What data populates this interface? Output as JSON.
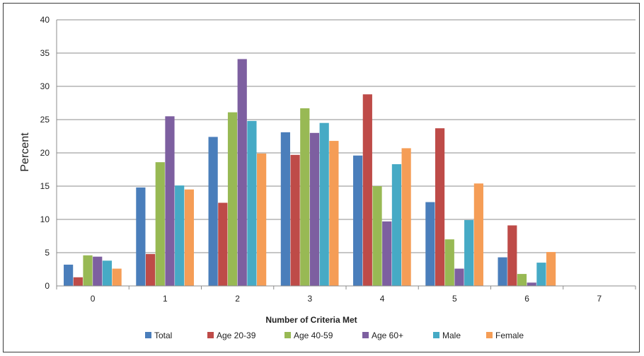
{
  "chart_data": {
    "type": "bar",
    "title": "",
    "xlabel": "Number of Criteria Met",
    "ylabel": "Percent",
    "ylim": [
      0,
      40
    ],
    "yticks": [
      "0",
      "5",
      "10",
      "15",
      "20",
      "25",
      "30",
      "35",
      "40"
    ],
    "grid": true,
    "legend_position": "bottom",
    "categories": [
      "0",
      "1",
      "2",
      "3",
      "4",
      "5",
      "6",
      "7"
    ],
    "series": [
      {
        "name": "Total",
        "color": "#4a7ebb",
        "values": [
          3.2,
          14.8,
          22.4,
          23.1,
          19.6,
          12.6,
          4.3,
          0.05
        ]
      },
      {
        "name": "Age 20-39",
        "color": "#be4b48",
        "values": [
          1.3,
          4.8,
          12.5,
          19.7,
          28.8,
          23.7,
          9.1,
          0.05
        ]
      },
      {
        "name": "Age 40-59",
        "color": "#98b954",
        "values": [
          4.6,
          18.6,
          26.1,
          26.7,
          15.0,
          7.0,
          1.8,
          0.05
        ]
      },
      {
        "name": "Age 60+",
        "color": "#7d5fa0",
        "values": [
          4.4,
          25.5,
          34.1,
          23.0,
          9.7,
          2.6,
          0.5,
          0.05
        ]
      },
      {
        "name": "Male",
        "color": "#46aac5",
        "values": [
          3.8,
          15.1,
          24.8,
          24.5,
          18.3,
          9.9,
          3.5,
          0.05
        ]
      },
      {
        "name": "Female",
        "color": "#f59d56",
        "values": [
          2.6,
          14.5,
          19.9,
          21.8,
          20.7,
          15.4,
          5.1,
          0.05
        ]
      }
    ]
  }
}
